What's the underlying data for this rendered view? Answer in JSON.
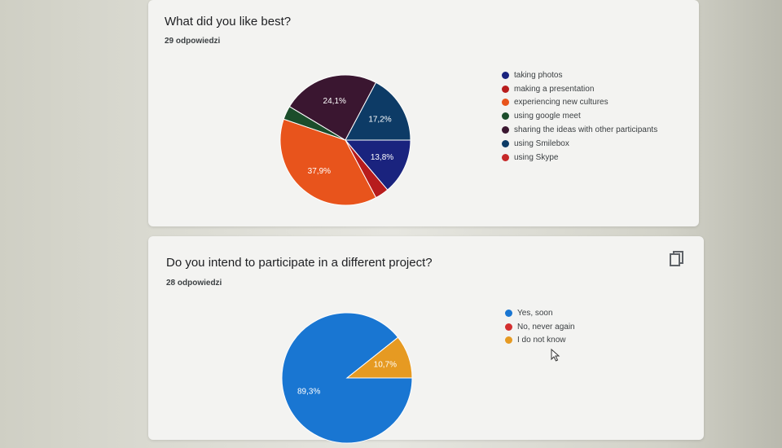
{
  "chart_data": [
    {
      "type": "pie",
      "title": "What did you like best?",
      "subtitle": "29 odpowiedzi",
      "legend_position": "right",
      "series": [
        {
          "name": "taking photos",
          "value": 13.8,
          "label": "13,8%",
          "color": "#1a237e"
        },
        {
          "name": "making a presentation",
          "value": 3.4,
          "label": "",
          "color": "#b71c1c"
        },
        {
          "name": "experiencing new cultures",
          "value": 37.9,
          "label": "37,9%",
          "color": "#e8541c"
        },
        {
          "name": "using google meet",
          "value": 3.4,
          "label": "",
          "color": "#1b4d2b"
        },
        {
          "name": "sharing the ideas with other participants",
          "value": 24.1,
          "label": "24,1%",
          "color": "#3a1630"
        },
        {
          "name": "using Smilebox",
          "value": 17.2,
          "label": "17,2%",
          "color": "#0d3b66"
        },
        {
          "name": "using Skype",
          "value": 0,
          "label": "",
          "color": "#c62828"
        }
      ]
    },
    {
      "type": "pie",
      "title": "Do you intend to participate in a different project?",
      "subtitle": "28 odpowiedzi",
      "legend_position": "right",
      "series": [
        {
          "name": "Yes, soon",
          "value": 89.3,
          "label": "89,3%",
          "color": "#1976d2"
        },
        {
          "name": "No, never again",
          "value": 0,
          "label": "",
          "color": "#d32f2f"
        },
        {
          "name": "I do not know",
          "value": 10.7,
          "label": "10,7%",
          "color": "#e69a22"
        }
      ]
    }
  ],
  "icons": {
    "copy": "copy-icon",
    "cursor": "mouse-cursor-icon"
  }
}
